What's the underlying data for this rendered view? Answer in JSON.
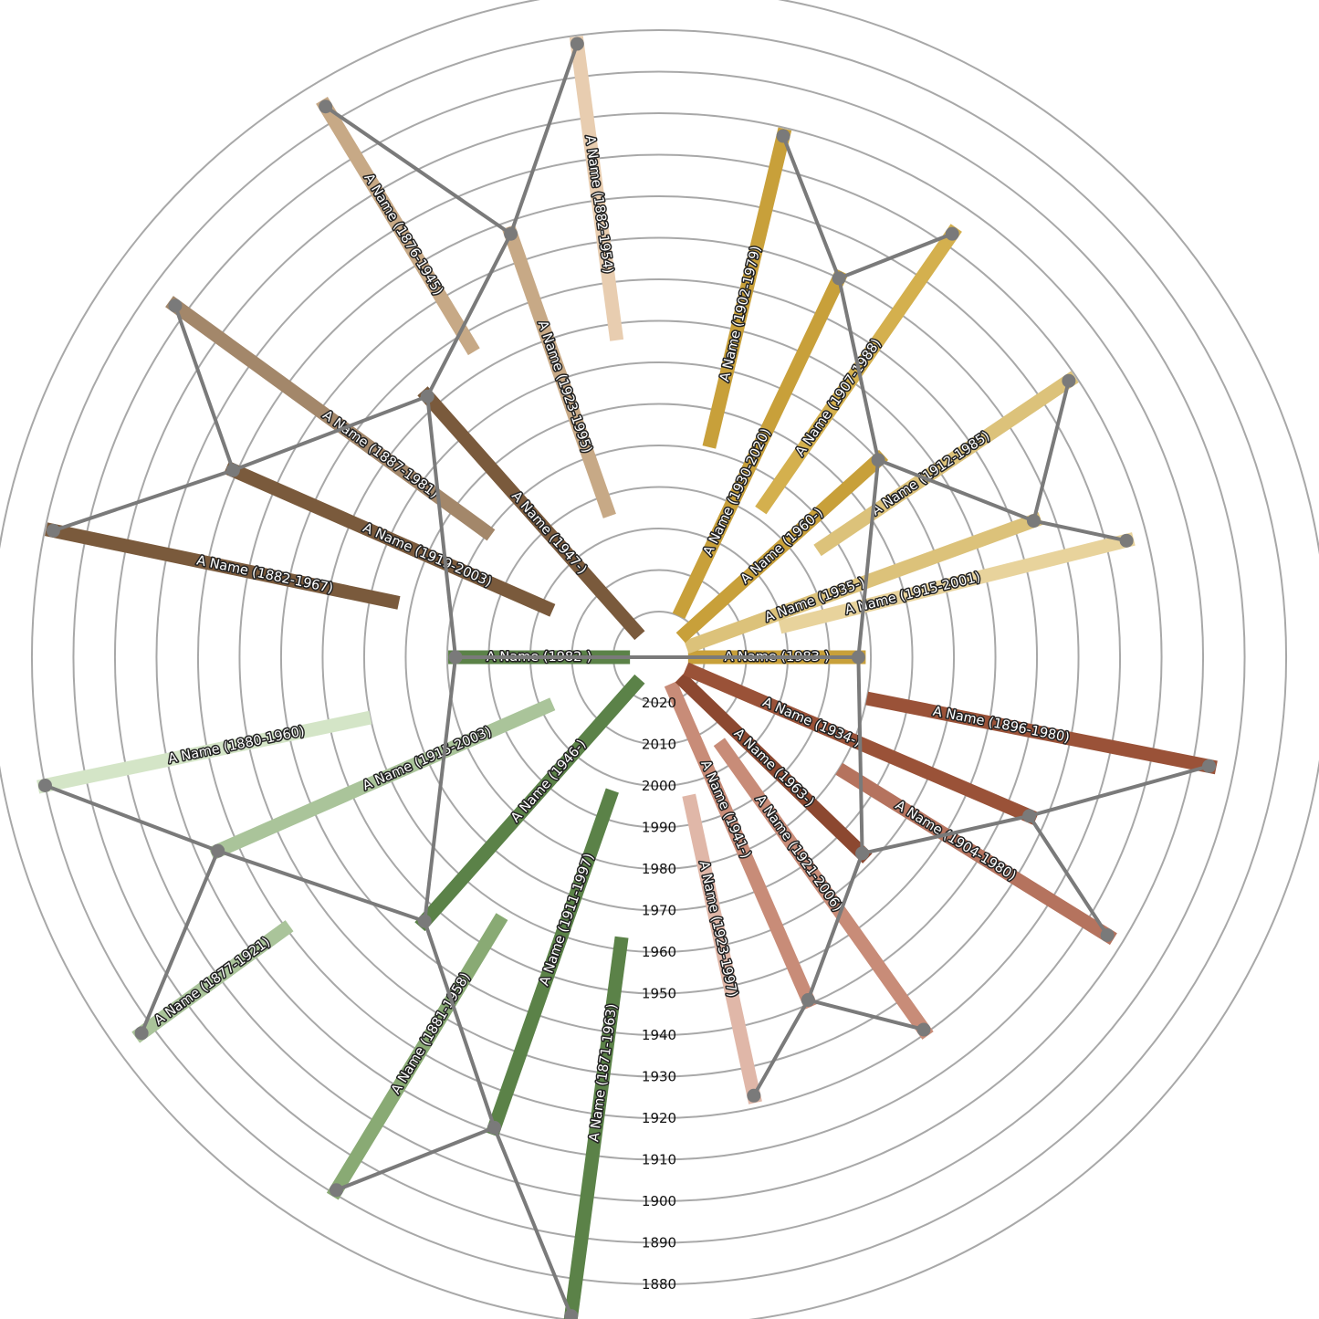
{
  "chart_data": {
    "type": "radial-bar",
    "title": "",
    "radial_axis": {
      "ticks": [
        2020,
        2010,
        2000,
        1990,
        1980,
        1970,
        1960,
        1950,
        1940,
        1930,
        1920,
        1910,
        1900,
        1890,
        1880
      ],
      "tick_labels": [
        "2020",
        "2010",
        "2000",
        "1990",
        "1980",
        "1970",
        "1960",
        "1950",
        "1940",
        "1930",
        "1920",
        "1910",
        "1900",
        "1890",
        "1880"
      ],
      "range": [
        1865,
        2023
      ],
      "direction": "inward"
    },
    "grid": true,
    "people": [
      {
        "id": "p0",
        "label": "A Name (1983-)",
        "birth": 1983,
        "death": null,
        "angle": 0,
        "color": "#c8a03a"
      },
      {
        "id": "p1",
        "label": "A Name (1915-2001)",
        "birth": 1915,
        "death": 2001,
        "angle": 14,
        "color": "#e8d39c"
      },
      {
        "id": "p2",
        "label": "A Name (1935-)",
        "birth": 1935,
        "death": null,
        "angle": 20,
        "color": "#dcc27a"
      },
      {
        "id": "p3",
        "label": "A Name (1912-1985)",
        "birth": 1912,
        "death": 1985,
        "angle": 34,
        "color": "#dcc27a"
      },
      {
        "id": "p4",
        "label": "A Name (1960-)",
        "birth": 1960,
        "death": null,
        "angle": 42,
        "color": "#c8a03a"
      },
      {
        "id": "p5",
        "label": "A Name (1907-1988)",
        "birth": 1907,
        "death": 1988,
        "angle": 55.3,
        "color": "#d4b04e"
      },
      {
        "id": "p6",
        "label": "A Name (1930-2020)",
        "birth": 1930,
        "death": 2020,
        "angle": 64.6,
        "color": "#c8a03a"
      },
      {
        "id": "p7",
        "label": "A Name (1902-1979)",
        "birth": 1902,
        "death": 1979,
        "angle": 76.6,
        "color": "#c8a03a"
      },
      {
        "id": "p8",
        "label": "A Name (1882-1954)",
        "birth": 1882,
        "death": 1954,
        "angle": 97.6,
        "color": "#e8cdb0"
      },
      {
        "id": "p9",
        "label": "A Name (1923-1995)",
        "birth": 1923,
        "death": 1995,
        "angle": 109.3,
        "color": "#c7a986"
      },
      {
        "id": "p10",
        "label": "A Name (1876-1945)",
        "birth": 1876,
        "death": 1945,
        "angle": 121.2,
        "color": "#c7a986"
      },
      {
        "id": "p11",
        "label": "A Name (1947-)",
        "birth": 1947,
        "death": null,
        "angle": 131.6,
        "color": "#7a5a3c"
      },
      {
        "id": "p12",
        "label": "A Name (1887-1981)",
        "birth": 1887,
        "death": 1981,
        "angle": 144,
        "color": "#a3876a"
      },
      {
        "id": "p13",
        "label": "A Name (1919-2003)",
        "birth": 1919,
        "death": 2003,
        "angle": 156.3,
        "color": "#7a5a3c"
      },
      {
        "id": "p14",
        "label": "A Name (1882-1967)",
        "birth": 1882,
        "death": 1967,
        "angle": 168.2,
        "color": "#7a5a3c"
      },
      {
        "id": "p15",
        "label": "A Name (1982-)",
        "birth": 1982,
        "death": null,
        "angle": 180,
        "color": "#5b8248"
      },
      {
        "id": "p16",
        "label": "A Name (1880-1960)",
        "birth": 1880,
        "death": 1960,
        "angle": 191.8,
        "color": "#d4e5c7"
      },
      {
        "id": "p17",
        "label": "A Name (1915-2003)",
        "birth": 1915,
        "death": 2003,
        "angle": 203.7,
        "color": "#aac49a"
      },
      {
        "id": "p18",
        "label": "A Name (1877-1921)",
        "birth": 1877,
        "death": 1921,
        "angle": 216,
        "color": "#aac49a"
      },
      {
        "id": "p19",
        "label": "A Name (1946-)",
        "birth": 1946,
        "death": null,
        "angle": 228.4,
        "color": "#5b8248"
      },
      {
        "id": "p20",
        "label": "A Name (1881-1958)",
        "birth": 1881,
        "death": 1958,
        "angle": 238.8,
        "color": "#89aa74"
      },
      {
        "id": "p21",
        "label": "A Name (1911-1997)",
        "birth": 1911,
        "death": 1997,
        "angle": 250.7,
        "color": "#5b8248"
      },
      {
        "id": "p22",
        "label": "A Name (1871-1963)",
        "birth": 1871,
        "death": 1963,
        "angle": 262.4,
        "color": "#5b8248"
      },
      {
        "id": "p23",
        "label": "A Name (1923-1997)",
        "birth": 1923,
        "death": 1997,
        "angle": 282.2,
        "color": "#e0b7a8"
      },
      {
        "id": "p24",
        "label": "A Name (1941-)",
        "birth": 1941,
        "death": null,
        "angle": 293.5,
        "color": "#c88c78"
      },
      {
        "id": "p25",
        "label": "A Name (1921-2006)",
        "birth": 1921,
        "death": 2006,
        "angle": 305.4,
        "color": "#c88c78"
      },
      {
        "id": "p26",
        "label": "A Name (1963-)",
        "birth": 1963,
        "death": null,
        "angle": 316,
        "color": "#8c4830"
      },
      {
        "id": "p27",
        "label": "A Name (1904-1980)",
        "birth": 1904,
        "death": 1980,
        "angle": 328.2,
        "color": "#b5735e"
      },
      {
        "id": "p28",
        "label": "A Name (1934-)",
        "birth": 1934,
        "death": null,
        "angle": 336.8,
        "color": "#9a5238"
      },
      {
        "id": "p29",
        "label": "A Name (1896-1980)",
        "birth": 1896,
        "death": 1980,
        "angle": 348.8,
        "color": "#9a5238"
      }
    ],
    "parent_links": [
      [
        "p0",
        "p4"
      ],
      [
        "p0",
        "p26"
      ],
      [
        "p4",
        "p6"
      ],
      [
        "p4",
        "p2"
      ],
      [
        "p6",
        "p7"
      ],
      [
        "p6",
        "p5"
      ],
      [
        "p2",
        "p3"
      ],
      [
        "p2",
        "p1"
      ],
      [
        "p26",
        "p28"
      ],
      [
        "p26",
        "p24"
      ],
      [
        "p28",
        "p29"
      ],
      [
        "p28",
        "p27"
      ],
      [
        "p24",
        "p25"
      ],
      [
        "p24",
        "p23"
      ],
      [
        "p0",
        "p15"
      ],
      [
        "p15",
        "p11"
      ],
      [
        "p15",
        "p19"
      ],
      [
        "p11",
        "p9"
      ],
      [
        "p11",
        "p13"
      ],
      [
        "p9",
        "p8"
      ],
      [
        "p9",
        "p10"
      ],
      [
        "p13",
        "p12"
      ],
      [
        "p13",
        "p14"
      ],
      [
        "p19",
        "p17"
      ],
      [
        "p19",
        "p21"
      ],
      [
        "p17",
        "p16"
      ],
      [
        "p17",
        "p18"
      ],
      [
        "p21",
        "p20"
      ],
      [
        "p21",
        "p22"
      ]
    ]
  }
}
